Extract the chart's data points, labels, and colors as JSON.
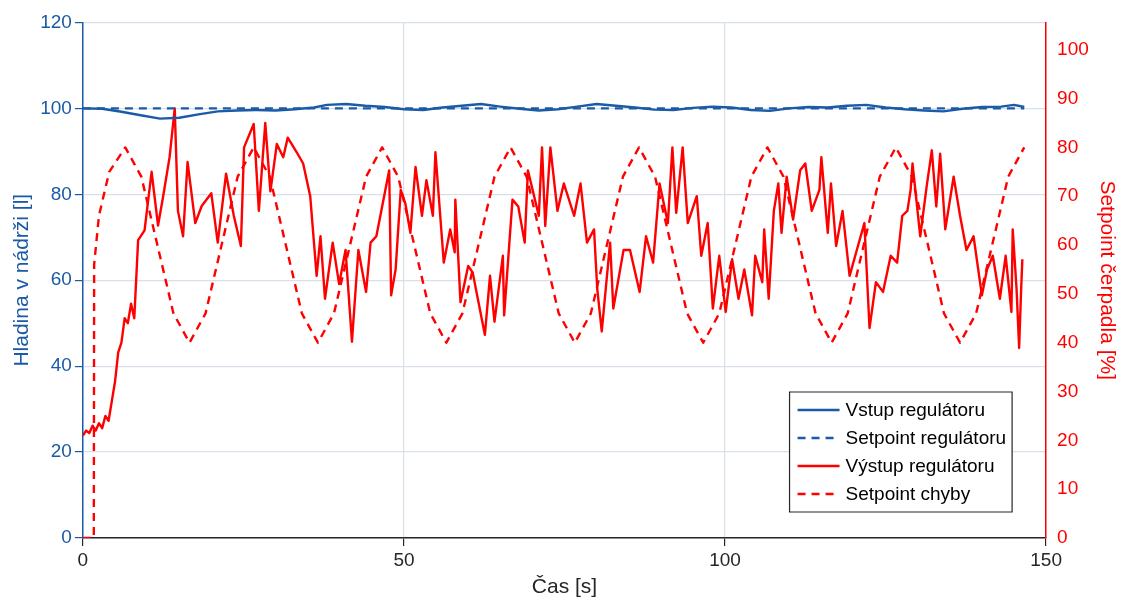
{
  "chart_data": {
    "type": "line",
    "xlabel": "Čas [s]",
    "ylabel": "Hladina v nádrži [l]",
    "y2label": "Setpoint čerpadla [%]",
    "xlim": [
      0,
      150
    ],
    "xticks": [
      0,
      50,
      100,
      150
    ],
    "ylim": [
      0,
      120
    ],
    "yticks": [
      0,
      20,
      40,
      60,
      80,
      100,
      120
    ],
    "y2lim": [
      0,
      105.6
    ],
    "y2ticks": [
      0,
      10,
      20,
      30,
      40,
      50,
      60,
      70,
      80,
      90,
      100
    ],
    "grid": true,
    "legend": "bottom right",
    "marker": "none",
    "series": [
      {
        "name": "Vstup regulátoru",
        "color": "#1a5aa6",
        "line_style": "solid",
        "x": [
          0,
          3,
          6,
          9,
          12,
          15,
          18,
          21,
          24,
          27,
          30,
          33,
          36,
          38,
          41,
          44,
          47,
          50,
          53,
          56,
          59,
          62,
          65,
          68,
          71,
          74,
          77,
          80,
          83,
          86,
          89,
          92,
          95,
          98,
          101,
          104,
          107,
          110,
          113,
          116,
          119,
          122,
          125,
          128,
          131,
          134,
          137,
          140,
          143,
          145,
          146.6
        ],
        "values": [
          100,
          99.9,
          99.2,
          98.4,
          97.6,
          97.8,
          98.6,
          99.3,
          99.5,
          99.6,
          99.5,
          99.8,
          100.2,
          100.8,
          101,
          100.6,
          100.3,
          99.8,
          99.6,
          100.2,
          100.6,
          101,
          100.4,
          99.9,
          99.5,
          99.8,
          100.4,
          101,
          100.6,
          100.2,
          99.7,
          99.6,
          100.1,
          100.4,
          100.2,
          99.6,
          99.4,
          100,
          100.3,
          100.2,
          100.6,
          100.8,
          100.2,
          99.8,
          99.5,
          99.3,
          99.9,
          100.3,
          100.4,
          100.8,
          100.3
        ]
      },
      {
        "name": "Setpoint regulátoru",
        "color": "#1a5aa6",
        "line_style": "dashed",
        "x": [
          0,
          146.6
        ],
        "values": [
          100,
          100
        ]
      },
      {
        "name": "Výstup regulátoru",
        "color": "#ff0000",
        "line_style": "solid",
        "axis": "y2",
        "x": [
          0,
          0.5,
          1,
          1.5,
          2,
          2.5,
          3,
          3.5,
          4,
          4.5,
          5,
          5.5,
          6,
          6.5,
          7,
          7.5,
          8,
          8.6,
          9.6,
          10.7,
          11.7,
          12.5,
          13.5,
          14.3,
          14.8,
          15.6,
          16.3,
          17.5,
          18.5,
          20,
          21,
          22.3,
          23.5,
          24.6,
          25.1,
          26.6,
          27.4,
          28.4,
          29.2,
          30.2,
          31.2,
          31.9,
          33.3,
          34.3,
          35.4,
          36.4,
          37,
          37.7,
          38.9,
          39.9,
          40.9,
          41.9,
          42.9,
          44.1,
          44.8,
          45.7,
          47.7,
          48,
          48.7,
          49.5,
          50.2,
          51,
          51.8,
          52.8,
          53.5,
          54.5,
          54.9,
          56.2,
          57.2,
          57.9,
          58,
          58.8,
          60,
          60.7,
          61.5,
          62.6,
          63.4,
          64.1,
          65.4,
          65.6,
          66.9,
          67.8,
          68.8,
          69.3,
          71,
          71.5,
          72,
          72.8,
          73.9,
          74.9,
          76.5,
          77.5,
          78.5,
          79.6,
          80.1,
          80.8,
          82.1,
          82.6,
          84.2,
          85.2,
          86.7,
          87.7,
          88.8,
          89.8,
          91.1,
          91.8,
          92.4,
          93.4,
          94.2,
          95.6,
          96.3,
          97.3,
          98.1,
          99.1,
          100.1,
          101.1,
          102.1,
          103,
          104.2,
          104.7,
          105.8,
          106.1,
          106.8,
          107.6,
          108.3,
          108.8,
          109.6,
          110.6,
          111.7,
          112.5,
          113.5,
          114.7,
          115,
          116,
          116.5,
          117.3,
          118.3,
          119.4,
          120.7,
          121.7,
          122.5,
          123.5,
          124.6,
          125.8,
          126.8,
          127.6,
          128.4,
          128.9,
          129.2,
          130.4,
          131.4,
          132.2,
          132.9,
          133.5,
          134.3,
          135.6,
          136.6,
          137.6,
          138.7,
          140,
          140.8,
          141.7,
          142.8,
          143.7,
          144.6,
          144.8,
          145.4,
          145.8,
          146.1,
          146.3
        ],
        "values": [
          21,
          22,
          21.5,
          23,
          22,
          23.5,
          22.5,
          25,
          24,
          28,
          32,
          38,
          40,
          45,
          44,
          48,
          45,
          61,
          63,
          75,
          64,
          70,
          78,
          88,
          67,
          61.8,
          77,
          64.5,
          68,
          70.6,
          60.5,
          74.6,
          66,
          59.8,
          80,
          84.8,
          67,
          85,
          71,
          80.7,
          78,
          82,
          79,
          76.7,
          70,
          53.7,
          61.8,
          49,
          60.5,
          52,
          59,
          40.2,
          59,
          50.4,
          60.5,
          61.8,
          75.3,
          49.7,
          55,
          71.3,
          68.6,
          62.5,
          76,
          66,
          73.3,
          66,
          79,
          56.4,
          63.2,
          58.5,
          69.3,
          48.3,
          55.7,
          54.4,
          49,
          41.6,
          53.7,
          44.3,
          57.8,
          45.6,
          69.3,
          67.9,
          60.5,
          75.3,
          66,
          80,
          63.9,
          80,
          67,
          72.6,
          66,
          72.6,
          60.5,
          63.2,
          51,
          42.3,
          60.5,
          47,
          59,
          59,
          50.4,
          61.8,
          56.4,
          72.6,
          64.5,
          80,
          66.6,
          80,
          64.5,
          70,
          57.8,
          64.5,
          47,
          57.8,
          46.3,
          57.1,
          49,
          55,
          45.6,
          57.8,
          52.4,
          63.2,
          49,
          67,
          72.6,
          62.5,
          74,
          65.2,
          75.3,
          76.7,
          67,
          71.3,
          78,
          62.5,
          72.6,
          59.8,
          67,
          53.7,
          59.8,
          64.5,
          43,
          52.4,
          50.4,
          57.8,
          56.4,
          66,
          67,
          71.3,
          76.7,
          61.8,
          72,
          79.4,
          67.9,
          78.7,
          63.2,
          74,
          66,
          59,
          61.8,
          49.7,
          55,
          57.8,
          49,
          57.8,
          46.3,
          63.2,
          51,
          38.9,
          50.4,
          57.1
        ]
      },
      {
        "name": "Setpoint chyby",
        "color": "#ff0000",
        "line_style": "dashed",
        "axis": "y2",
        "x": [
          0,
          1.7,
          1.75,
          2.5,
          4.1,
          6.6,
          9.1,
          11.6,
          14.1,
          16.6,
          19.1,
          21.6,
          24.1,
          26.6,
          29.1,
          31.6,
          34.1,
          36.6,
          39.1,
          41.6,
          44.1,
          46.6,
          49.1,
          51.6,
          54.1,
          56.6,
          59.1,
          61.6,
          64.1,
          66.6,
          69.1,
          71.6,
          74.1,
          76.6,
          79.1,
          81.6,
          84.1,
          86.6,
          89.1,
          91.6,
          94.1,
          96.6,
          99.1,
          101.6,
          104.1,
          106.6,
          109.1,
          111.6,
          114.1,
          116.6,
          119.1,
          121.6,
          124.1,
          126.6,
          129.1,
          131.6,
          134.1,
          136.6,
          139.1,
          141.6,
          144.1,
          146.6
        ],
        "values": [
          0,
          0,
          56,
          66,
          75,
          80,
          74,
          60,
          46,
          40,
          46,
          60,
          74,
          80,
          74,
          60,
          46,
          40,
          46,
          60,
          74,
          80,
          74,
          60,
          46,
          40,
          46,
          60,
          74,
          80,
          74,
          60,
          46,
          40,
          46,
          60,
          74,
          80,
          74,
          60,
          46,
          40,
          46,
          60,
          74,
          80,
          74,
          60,
          46,
          40,
          46,
          60,
          74,
          80,
          74,
          60,
          46,
          40,
          46,
          60,
          74,
          80
        ]
      }
    ]
  }
}
